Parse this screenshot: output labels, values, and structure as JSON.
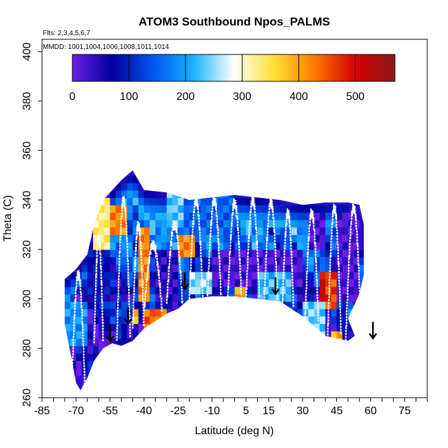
{
  "chart_data": {
    "type": "heatmap",
    "title": "ATOM3 Southbound Npos_PALMS",
    "flights_note": "Flts: 2,3,4,5,6,7",
    "dates_note": "MMDD: 1001,1004,1006,1008,1011,1014",
    "xlabel": "Latitude (deg N)",
    "ylabel": "Theta (C)",
    "xlim": [
      -85,
      85
    ],
    "ylim": [
      260,
      405
    ],
    "x_ticks": [
      -85,
      -70,
      -55,
      -40,
      -25,
      -10,
      5,
      15,
      30,
      45,
      60,
      75
    ],
    "x_minor_step": 5,
    "y_ticks": [
      260,
      280,
      300,
      320,
      340,
      360,
      380,
      400
    ],
    "colorbar": {
      "range": [
        0,
        570
      ],
      "ticks": [
        0,
        100,
        200,
        300,
        400,
        500
      ],
      "colors": [
        "#6a1fe6",
        "#00009e",
        "#0055ee",
        "#17b2ff",
        "#ffffff",
        "#ffe033",
        "#ff7a00",
        "#d60000",
        "#8b1a1a"
      ]
    },
    "field": {
      "boundary_upper": [
        [
          -75,
          308
        ],
        [
          -70,
          312
        ],
        [
          -65,
          318
        ],
        [
          -62,
          330
        ],
        [
          -58,
          340
        ],
        [
          -50,
          348
        ],
        [
          -45,
          352
        ],
        [
          -40,
          344
        ],
        [
          -30,
          343
        ],
        [
          -20,
          340
        ],
        [
          0,
          342
        ],
        [
          20,
          340
        ],
        [
          30,
          338
        ],
        [
          40,
          339
        ],
        [
          50,
          339
        ],
        [
          55,
          338
        ],
        [
          57,
          330
        ],
        [
          57,
          310
        ],
        [
          55,
          302
        ],
        [
          50,
          292
        ]
      ],
      "boundary_lower": [
        [
          -75,
          290
        ],
        [
          -72,
          276
        ],
        [
          -70,
          266
        ],
        [
          -68,
          263
        ],
        [
          -65,
          268
        ],
        [
          -62,
          275
        ],
        [
          -58,
          280
        ],
        [
          -54,
          282
        ],
        [
          -50,
          281
        ],
        [
          -45,
          283
        ],
        [
          -40,
          288
        ],
        [
          -30,
          294
        ],
        [
          -25,
          296
        ],
        [
          -20,
          300
        ],
        [
          -10,
          301
        ],
        [
          0,
          301
        ],
        [
          10,
          300
        ],
        [
          20,
          299
        ],
        [
          30,
          293
        ],
        [
          40,
          285
        ],
        [
          50,
          283
        ],
        [
          53,
          285
        ]
      ],
      "patches": [
        {
          "lat": [
            -62,
            -55
          ],
          "theta": [
            315,
            342
          ],
          "value": 330
        },
        {
          "lat": [
            -55,
            -48
          ],
          "theta": [
            325,
            338
          ],
          "value": 420
        },
        {
          "lat": [
            -42,
            -38
          ],
          "theta": [
            300,
            330
          ],
          "value": 420
        },
        {
          "lat": [
            -40,
            -30
          ],
          "theta": [
            288,
            296
          ],
          "value": 440
        },
        {
          "lat": [
            -48,
            -42
          ],
          "theta": [
            290,
            296
          ],
          "value": 380
        },
        {
          "lat": [
            -65,
            -55
          ],
          "theta": [
            300,
            320
          ],
          "value": 80
        },
        {
          "lat": [
            -35,
            -25
          ],
          "theta": [
            300,
            320
          ],
          "value": 40
        },
        {
          "lat": [
            -25,
            -18
          ],
          "theta": [
            318,
            332
          ],
          "value": 420
        },
        {
          "lat": [
            -30,
            0
          ],
          "theta": [
            325,
            345
          ],
          "value": 150
        },
        {
          "lat": [
            -10,
            30
          ],
          "theta": [
            305,
            320
          ],
          "value": 20
        },
        {
          "lat": [
            -20,
            -10
          ],
          "theta": [
            302,
            310
          ],
          "value": 250
        },
        {
          "lat": [
            0,
            5
          ],
          "theta": [
            300,
            306
          ],
          "value": 400
        },
        {
          "lat": [
            10,
            25
          ],
          "theta": [
            300,
            312
          ],
          "value": 220
        },
        {
          "lat": [
            30,
            40
          ],
          "theta": [
            285,
            300
          ],
          "value": 240
        },
        {
          "lat": [
            38,
            42
          ],
          "theta": [
            300,
            312
          ],
          "value": 510
        },
        {
          "lat": [
            40,
            45
          ],
          "theta": [
            295,
            310
          ],
          "value": 460
        },
        {
          "lat": [
            45,
            55
          ],
          "theta": [
            300,
            335
          ],
          "value": 20
        },
        {
          "lat": [
            32,
            40
          ],
          "theta": [
            320,
            335
          ],
          "value": 20
        },
        {
          "lat": [
            42,
            48
          ],
          "theta": [
            282,
            287
          ],
          "value": 400
        },
        {
          "lat": [
            -75,
            -65
          ],
          "theta": [
            282,
            300
          ],
          "value": 190
        },
        {
          "lat": [
            -30,
            -22
          ],
          "theta": [
            330,
            345
          ],
          "value": 230
        },
        {
          "lat": [
            -55,
            -45
          ],
          "theta": [
            290,
            300
          ],
          "value": 120
        }
      ]
    },
    "profiles": [
      {
        "lat_range": [
          -72,
          -66
        ],
        "theta_range": [
          263,
          310
        ]
      },
      {
        "lat_range": [
          -62,
          -58
        ],
        "theta_range": [
          282,
          325
        ]
      },
      {
        "lat_range": [
          -52,
          -46
        ],
        "theta_range": [
          283,
          340
        ]
      },
      {
        "lat_range": [
          -45,
          -40
        ],
        "theta_range": [
          288,
          330
        ]
      },
      {
        "lat_range": [
          -40,
          -32
        ],
        "theta_range": [
          295,
          322
        ]
      },
      {
        "lat_range": [
          -30,
          -23
        ],
        "theta_range": [
          298,
          330
        ]
      },
      {
        "lat_range": [
          -20,
          -14
        ],
        "theta_range": [
          300,
          340
        ]
      },
      {
        "lat_range": [
          -12,
          -6
        ],
        "theta_range": [
          301,
          340
        ]
      },
      {
        "lat_range": [
          -3,
          3
        ],
        "theta_range": [
          301,
          339
        ]
      },
      {
        "lat_range": [
          5,
          11
        ],
        "theta_range": [
          300,
          340
        ]
      },
      {
        "lat_range": [
          13,
          19
        ],
        "theta_range": [
          299,
          339
        ]
      },
      {
        "lat_range": [
          21,
          26
        ],
        "theta_range": [
          296,
          335
        ]
      },
      {
        "lat_range": [
          31,
          37
        ],
        "theta_range": [
          290,
          335
        ]
      },
      {
        "lat_range": [
          41,
          47
        ],
        "theta_range": [
          284,
          337
        ]
      },
      {
        "lat_range": [
          49,
          56
        ],
        "theta_range": [
          283,
          337
        ]
      }
    ],
    "arrows": [
      {
        "lat": -55,
        "theta": 283
      },
      {
        "lat": -47,
        "theta": 290
      },
      {
        "lat": -22,
        "theta": 304
      },
      {
        "lat": 18,
        "theta": 302
      },
      {
        "lat": 61,
        "theta": 284
      }
    ]
  }
}
